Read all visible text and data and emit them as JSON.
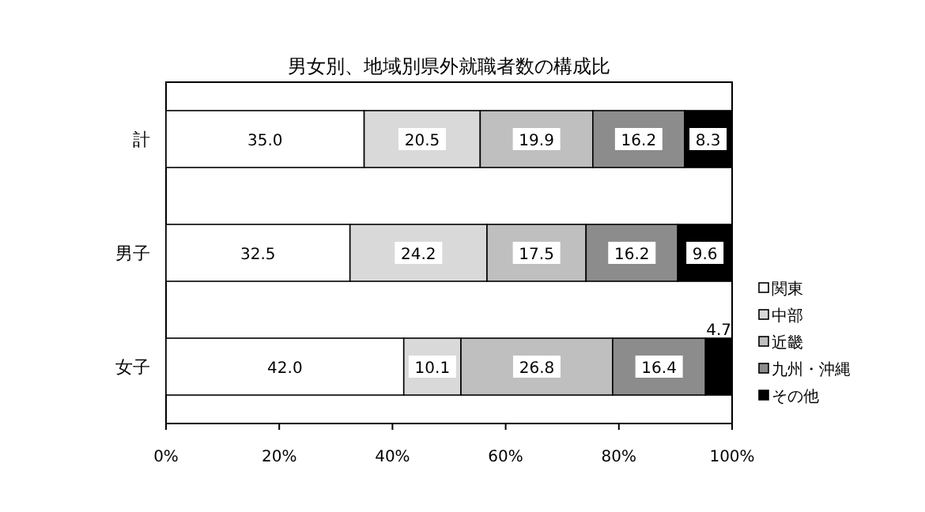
{
  "chart_data": {
    "type": "bar",
    "orientation": "horizontal",
    "stacked": true,
    "title": "男女別、地域別県外就職者数の構成比",
    "categories": [
      "計",
      "男子",
      "女子"
    ],
    "series": [
      {
        "name": "関東",
        "color": "#ffffff",
        "values": [
          35.0,
          32.5,
          42.0
        ],
        "value_labels": [
          "35.0",
          "32.5",
          "42.0"
        ]
      },
      {
        "name": "中部",
        "color": "#d9d9d9",
        "values": [
          20.5,
          24.2,
          10.1
        ],
        "value_labels": [
          "20.5",
          "24.2",
          "10.1"
        ]
      },
      {
        "name": "近畿",
        "color": "#bfbfbf",
        "values": [
          19.9,
          17.5,
          26.8
        ],
        "value_labels": [
          "19.9",
          "17.5",
          "26.8"
        ]
      },
      {
        "name": "九州・沖縄",
        "color": "#8c8c8c",
        "values": [
          16.2,
          16.2,
          16.4
        ],
        "value_labels": [
          "16.2",
          "16.2",
          "16.4"
        ]
      },
      {
        "name": "その他",
        "color": "#000000",
        "values": [
          8.3,
          9.6,
          4.7
        ],
        "value_labels": [
          "8.3",
          "9.6",
          "4.7"
        ]
      }
    ],
    "xlim": [
      0,
      100
    ],
    "xticks": [
      {
        "value": 0,
        "label": "0%"
      },
      {
        "value": 20,
        "label": "20%"
      },
      {
        "value": 40,
        "label": "40%"
      },
      {
        "value": 60,
        "label": "60%"
      },
      {
        "value": 80,
        "label": "80%"
      },
      {
        "value": 100,
        "label": "100%"
      }
    ],
    "legend": "right",
    "grid": false
  }
}
